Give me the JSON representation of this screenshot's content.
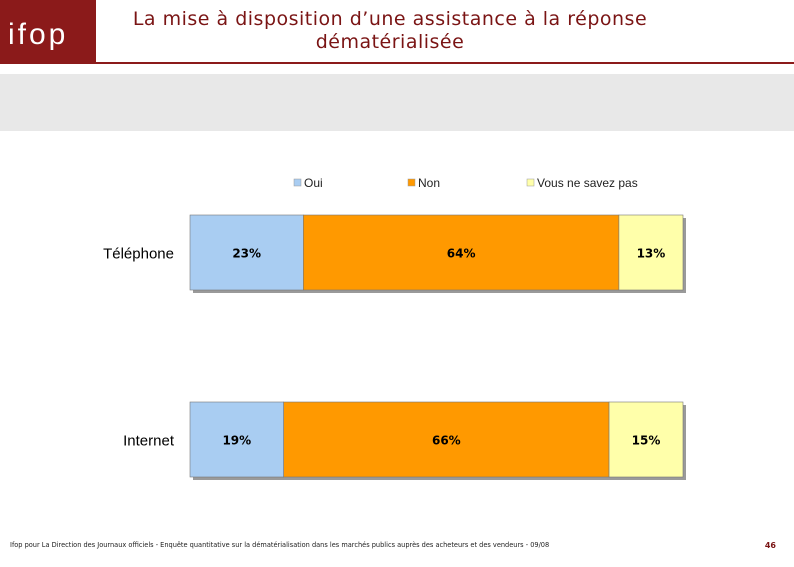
{
  "header": {
    "logo_text": "ifop",
    "title_line1": "La mise à disposition d’une assistance à la réponse",
    "title_line2": "dématérialisée"
  },
  "footer": {
    "source": "Ifop pour La Direction des Journaux officiels - Enquête quantitative sur la dématérialisation dans les marchés publics auprès des acheteurs et des vendeurs - 09/08",
    "page_number": "46"
  },
  "chart_data": {
    "type": "bar",
    "orientation": "horizontal",
    "stacked": "100%",
    "categories": [
      "Téléphone",
      "Internet"
    ],
    "series": [
      {
        "name": "Oui",
        "color": "#a9cdf2",
        "values": [
          23,
          19
        ],
        "labels": [
          "23%",
          "19%"
        ]
      },
      {
        "name": "Non",
        "color": "#ff9900",
        "values": [
          64,
          66
        ],
        "labels": [
          "64%",
          "66%"
        ]
      },
      {
        "name": "Vous ne savez pas",
        "color": "#ffffaa",
        "values": [
          13,
          15
        ],
        "labels": [
          "13%",
          "15%"
        ]
      }
    ],
    "legend_position": "top",
    "xlim": [
      0,
      100
    ],
    "unit": "%"
  }
}
